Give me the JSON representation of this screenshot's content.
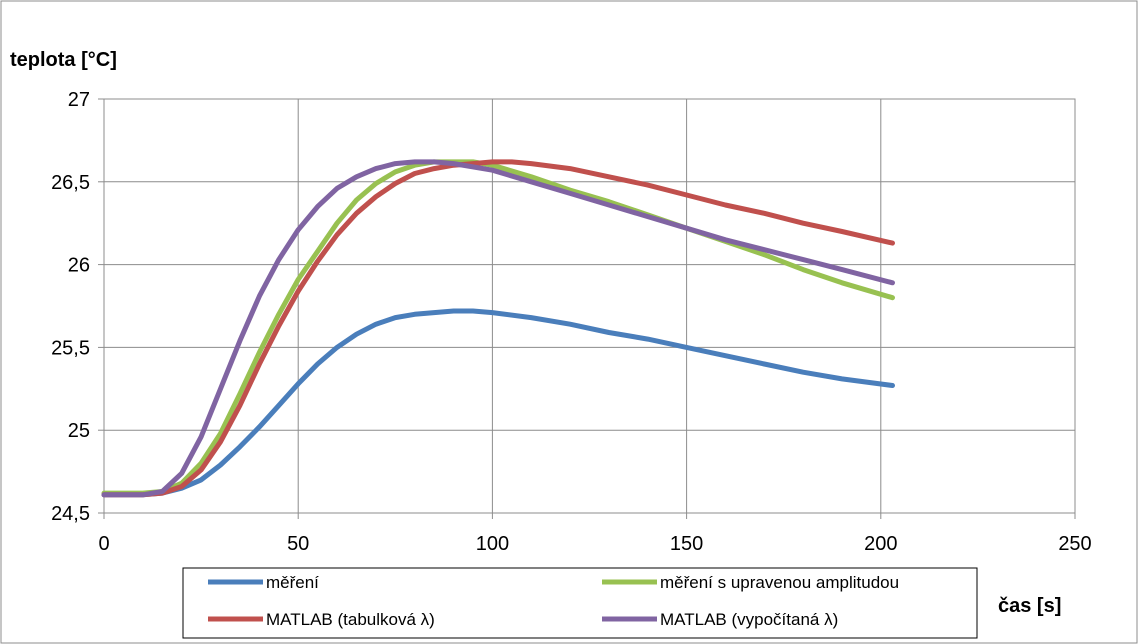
{
  "chart_data": {
    "type": "line",
    "ylabel": "teplota [°C]",
    "xlabel": "čas [s]",
    "xlim": [
      0,
      250
    ],
    "ylim": [
      24.5,
      27
    ],
    "x_ticks": [
      "0",
      "50",
      "100",
      "150",
      "200",
      "250"
    ],
    "y_ticks": [
      "24,5",
      "25",
      "25,5",
      "26",
      "26,5",
      "27"
    ],
    "grid": true,
    "legend_position": "bottom",
    "series": [
      {
        "name": "měření",
        "color": "#4a7ebb",
        "x": [
          0,
          10,
          15,
          20,
          25,
          30,
          35,
          40,
          45,
          50,
          55,
          60,
          65,
          70,
          75,
          80,
          85,
          90,
          95,
          100,
          110,
          120,
          130,
          140,
          150,
          160,
          170,
          180,
          190,
          203
        ],
        "y": [
          24.61,
          24.61,
          24.62,
          24.65,
          24.7,
          24.79,
          24.9,
          25.02,
          25.15,
          25.28,
          25.4,
          25.5,
          25.58,
          25.64,
          25.68,
          25.7,
          25.71,
          25.72,
          25.72,
          25.71,
          25.68,
          25.64,
          25.59,
          25.55,
          25.5,
          25.45,
          25.4,
          25.35,
          25.31,
          25.27
        ]
      },
      {
        "name": "měření s upravenou amplitudou",
        "color": "#98c151",
        "x": [
          0,
          10,
          15,
          20,
          25,
          30,
          35,
          40,
          45,
          50,
          55,
          60,
          65,
          70,
          75,
          80,
          85,
          90,
          95,
          100,
          110,
          120,
          130,
          140,
          150,
          160,
          170,
          180,
          190,
          203
        ],
        "y": [
          24.62,
          24.62,
          24.63,
          24.68,
          24.8,
          24.98,
          25.22,
          25.47,
          25.7,
          25.91,
          26.08,
          26.25,
          26.39,
          26.49,
          26.56,
          26.6,
          26.62,
          26.62,
          26.62,
          26.6,
          26.53,
          26.45,
          26.38,
          26.3,
          26.22,
          26.14,
          26.06,
          25.97,
          25.89,
          25.8
        ]
      },
      {
        "name": "MATLAB (tabulková  λ)",
        "color": "#c0504d",
        "x": [
          0,
          10,
          15,
          20,
          25,
          30,
          35,
          40,
          45,
          50,
          55,
          60,
          65,
          70,
          75,
          80,
          85,
          90,
          95,
          100,
          105,
          110,
          120,
          130,
          140,
          150,
          160,
          170,
          180,
          190,
          203
        ],
        "y": [
          24.61,
          24.61,
          24.62,
          24.66,
          24.76,
          24.93,
          25.15,
          25.4,
          25.63,
          25.84,
          26.02,
          26.18,
          26.31,
          26.41,
          26.49,
          26.55,
          26.58,
          26.6,
          26.61,
          26.62,
          26.62,
          26.61,
          26.58,
          26.53,
          26.48,
          26.42,
          26.36,
          26.31,
          26.25,
          26.2,
          26.13
        ]
      },
      {
        "name": "MATLAB (vypočítaná λ)",
        "color": "#8064a2",
        "x": [
          0,
          10,
          15,
          20,
          25,
          30,
          35,
          40,
          45,
          50,
          55,
          60,
          65,
          70,
          75,
          80,
          85,
          90,
          95,
          100,
          110,
          120,
          130,
          140,
          150,
          160,
          170,
          180,
          190,
          203
        ],
        "y": [
          24.61,
          24.61,
          24.63,
          24.74,
          24.96,
          25.25,
          25.54,
          25.81,
          26.03,
          26.21,
          26.35,
          26.46,
          26.53,
          26.58,
          26.61,
          26.62,
          26.62,
          26.61,
          26.59,
          26.57,
          26.5,
          26.43,
          26.36,
          26.29,
          26.22,
          26.15,
          26.09,
          26.03,
          25.97,
          25.89
        ]
      }
    ]
  }
}
